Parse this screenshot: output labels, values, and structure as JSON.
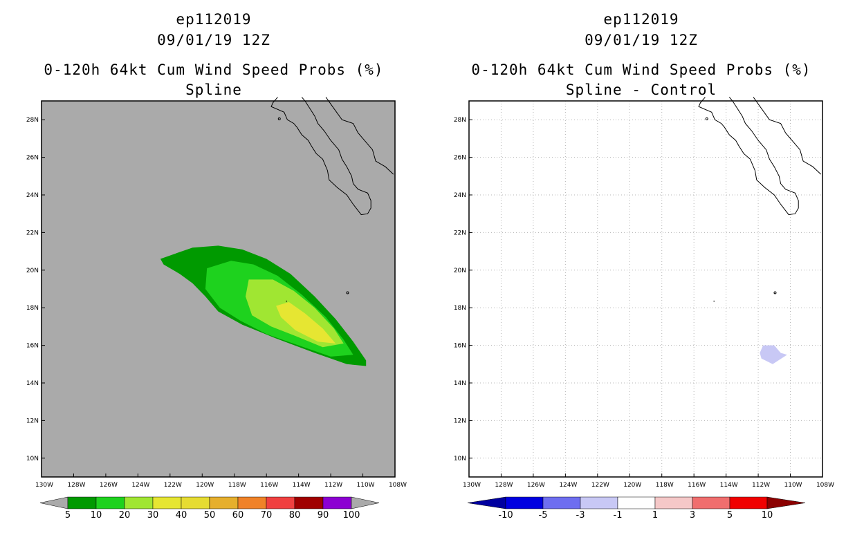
{
  "chart_data": [
    {
      "type": "filled-contour-map",
      "header": {
        "storm_id": "ep112019",
        "date": "09/01/19 12Z",
        "title": "0-120h 64kt Cum Wind Speed Probs (%)",
        "subtitle": "Spline"
      },
      "xaxis": {
        "range": [
          -130,
          -108
        ],
        "tick_labels": [
          "130W",
          "128W",
          "126W",
          "124W",
          "122W",
          "120W",
          "118W",
          "116W",
          "114W",
          "112W",
          "110W",
          "108W"
        ]
      },
      "yaxis": {
        "range": [
          9,
          29
        ],
        "tick_labels": [
          "10N",
          "12N",
          "14N",
          "16N",
          "18N",
          "20N",
          "22N",
          "24N",
          "26N",
          "28N"
        ]
      },
      "grid": false,
      "background_color": "#aaaaaa",
      "colorbar": {
        "levels": [
          "5",
          "10",
          "20",
          "30",
          "40",
          "50",
          "60",
          "70",
          "80",
          "90",
          "100"
        ],
        "colors": [
          "#009a00",
          "#1ed21e",
          "#a0e632",
          "#e6e632",
          "#e6dc32",
          "#e6af2d",
          "#f08228",
          "#f04040",
          "#a00000",
          "#8c00d2"
        ],
        "end_color": "#aaaaaa"
      },
      "contours": [
        {
          "level": 5,
          "color": "#009a00",
          "points": [
            [
              -122.6,
              20.6
            ],
            [
              -121.6,
              20.9
            ],
            [
              -120.6,
              21.2
            ],
            [
              -119.0,
              21.3
            ],
            [
              -117.5,
              21.1
            ],
            [
              -116.0,
              20.6
            ],
            [
              -114.5,
              19.8
            ],
            [
              -113.0,
              18.6
            ],
            [
              -111.7,
              17.4
            ],
            [
              -110.6,
              16.2
            ],
            [
              -109.8,
              15.2
            ],
            [
              -109.8,
              14.9
            ],
            [
              -111.0,
              15.0
            ],
            [
              -113.0,
              15.6
            ],
            [
              -115.5,
              16.4
            ],
            [
              -117.5,
              17.1
            ],
            [
              -119.0,
              17.8
            ],
            [
              -119.8,
              18.6
            ],
            [
              -120.6,
              19.3
            ],
            [
              -121.4,
              19.8
            ],
            [
              -122.4,
              20.3
            ]
          ]
        },
        {
          "level": 10,
          "color": "#1ed21e",
          "points": [
            [
              -119.7,
              20.1
            ],
            [
              -118.2,
              20.5
            ],
            [
              -116.8,
              20.3
            ],
            [
              -115.3,
              19.7
            ],
            [
              -113.8,
              18.7
            ],
            [
              -112.3,
              17.5
            ],
            [
              -111.2,
              16.3
            ],
            [
              -110.6,
              15.5
            ],
            [
              -112.0,
              15.4
            ],
            [
              -114.0,
              16.0
            ],
            [
              -116.0,
              16.6
            ],
            [
              -117.6,
              17.3
            ],
            [
              -118.9,
              18.0
            ],
            [
              -119.8,
              19.0
            ]
          ]
        },
        {
          "level": 20,
          "color": "#a0e632",
          "points": [
            [
              -117.1,
              19.5
            ],
            [
              -115.6,
              19.5
            ],
            [
              -114.3,
              18.9
            ],
            [
              -113.0,
              18.0
            ],
            [
              -111.8,
              16.9
            ],
            [
              -111.2,
              16.1
            ],
            [
              -112.5,
              15.9
            ],
            [
              -114.2,
              16.5
            ],
            [
              -115.7,
              17.0
            ],
            [
              -116.9,
              17.6
            ],
            [
              -117.3,
              18.6
            ]
          ]
        },
        {
          "level": 30,
          "color": "#e6e632",
          "points": [
            [
              -115.4,
              18.1
            ],
            [
              -114.6,
              18.3
            ],
            [
              -113.6,
              17.7
            ],
            [
              -112.5,
              16.9
            ],
            [
              -111.7,
              16.1
            ],
            [
              -112.8,
              16.2
            ],
            [
              -114.2,
              16.8
            ],
            [
              -115.1,
              17.5
            ]
          ]
        }
      ],
      "land_outline": "Baja California peninsula"
    },
    {
      "type": "filled-contour-map",
      "header": {
        "storm_id": "ep112019",
        "date": "09/01/19 12Z",
        "title": "0-120h 64kt Cum Wind Speed Probs (%)",
        "subtitle": "Spline - Control"
      },
      "xaxis": {
        "range": [
          -130,
          -108
        ],
        "tick_labels": [
          "130W",
          "128W",
          "126W",
          "124W",
          "122W",
          "120W",
          "118W",
          "116W",
          "114W",
          "112W",
          "110W",
          "108W"
        ]
      },
      "yaxis": {
        "range": [
          9,
          29
        ],
        "tick_labels": [
          "10N",
          "12N",
          "14N",
          "16N",
          "18N",
          "20N",
          "22N",
          "24N",
          "26N",
          "28N"
        ]
      },
      "grid": true,
      "background_color": "#ffffff",
      "colorbar": {
        "levels": [
          "-10",
          "-5",
          "-3",
          "-1",
          "1",
          "3",
          "5",
          "10"
        ],
        "colors": [
          "#0000e0",
          "#6e6ef0",
          "#c8c8f5",
          "#ffffff",
          "#f5c8c8",
          "#f06e6e",
          "#f00000"
        ],
        "low_end_color": "#0000a0",
        "high_end_color": "#8b0000"
      },
      "contours": [
        {
          "level": -3,
          "color": "#c8c8f5",
          "points": [
            [
              -111.7,
              16.0
            ],
            [
              -111.0,
              16.0
            ],
            [
              -110.6,
              15.6
            ],
            [
              -110.2,
              15.5
            ],
            [
              -111.1,
              15.0
            ],
            [
              -111.8,
              15.3
            ],
            [
              -111.9,
              15.6
            ]
          ]
        }
      ],
      "land_outline": "Baja California peninsula"
    }
  ]
}
